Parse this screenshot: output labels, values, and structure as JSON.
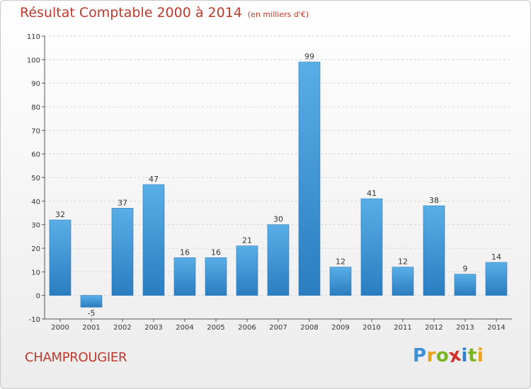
{
  "header": {
    "title": "Résultat Comptable 2000 à 2014",
    "subtitle": "(en milliers d'€)"
  },
  "location": "CHAMPROUGIER",
  "logo": {
    "text": "Proxiti",
    "letters": [
      "P",
      "r",
      "o",
      "x",
      "i",
      "t",
      "i"
    ],
    "colors": [
      "#3a8fd6",
      "#e8a21b",
      "#7ab51d",
      "#d1312a",
      "#2f82d0",
      "#7ab51d",
      "#e8a21b"
    ]
  },
  "colors": {
    "accent": "#c0392b",
    "bar_light": "#5aaee6",
    "bar_dark": "#2a7dc0",
    "grid": "#d4d4d4"
  },
  "chart_data": {
    "type": "bar",
    "title": "Résultat Comptable 2000 à 2014",
    "subtitle": "(en milliers d'€)",
    "xlabel": "",
    "ylabel": "",
    "categories": [
      "2000",
      "2001",
      "2002",
      "2003",
      "2004",
      "2005",
      "2006",
      "2007",
      "2008",
      "2009",
      "2010",
      "2011",
      "2012",
      "2013",
      "2014"
    ],
    "values": [
      32,
      -5,
      37,
      47,
      16,
      16,
      21,
      30,
      99,
      12,
      41,
      12,
      38,
      9,
      14
    ],
    "value_labels": [
      "32",
      "-5",
      "37",
      "47",
      "16",
      "16",
      "21",
      "30",
      "99",
      "12",
      "41",
      "12",
      "38",
      "9",
      "14"
    ],
    "ylim": [
      -10,
      110
    ],
    "yticks": [
      -10,
      0,
      10,
      20,
      30,
      40,
      50,
      60,
      70,
      80,
      90,
      100,
      110
    ],
    "ytick_labels": [
      "-10",
      "0",
      "10",
      "20",
      "30",
      "40",
      "50",
      "60",
      "70",
      "80",
      "90",
      "100",
      "110"
    ],
    "grid": true
  }
}
